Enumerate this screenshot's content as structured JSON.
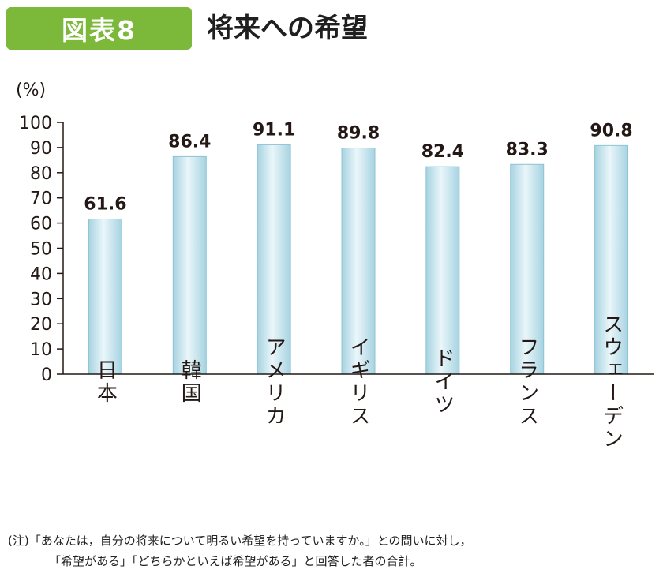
{
  "figure_label": "図表8",
  "title": "将来への希望",
  "note": {
    "line1": "(注)「あなたは，自分の将来について明るい希望を持っていますか。」との問いに対し，",
    "line2": "「希望がある」「どちらかといえば希望がある」と回答した者の合計。"
  },
  "colors": {
    "badge": "#7cb83a",
    "bar_light": "#eaf6fa",
    "bar_dark": "#a6d3e1"
  },
  "chart_data": {
    "type": "bar",
    "title": "将来への希望",
    "unit_label": "(%)",
    "categories": [
      "日本",
      "韓国",
      "アメリカ",
      "イギリス",
      "ドイツ",
      "フランス",
      "スウェーデン"
    ],
    "values": [
      61.6,
      86.4,
      91.1,
      89.8,
      82.4,
      83.3,
      90.8
    ],
    "value_labels": [
      "61.6",
      "86.4",
      "91.1",
      "89.8",
      "82.4",
      "83.3",
      "90.8"
    ],
    "y_ticks": [
      0,
      10,
      20,
      30,
      40,
      50,
      60,
      70,
      80,
      90,
      100
    ],
    "ylim": [
      0,
      100
    ],
    "xlabel": "",
    "ylabel": "(%)"
  }
}
